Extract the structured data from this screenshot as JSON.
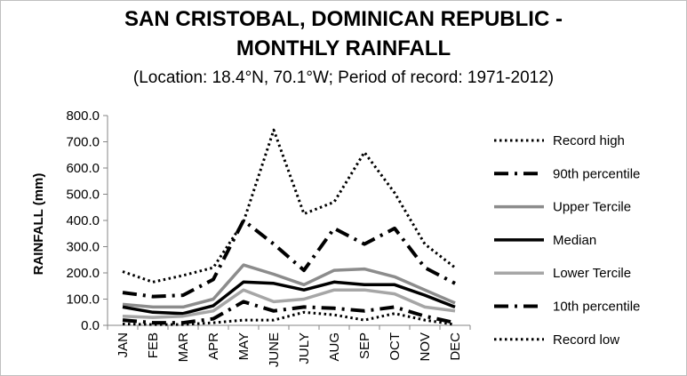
{
  "chart_data": {
    "type": "line",
    "title_line1": "SAN CRISTOBAL, DOMINICAN REPUBLIC -",
    "title_line2": "MONTHLY RAINFALL",
    "subtitle": "(Location: 18.4°N, 70.1°W; Period of record: 1971-2012)",
    "xlabel": "",
    "ylabel": "RAINFALL (mm)",
    "ylim": [
      0,
      800
    ],
    "yticks": [
      "0.0",
      "100.0",
      "200.0",
      "300.0",
      "400.0",
      "500.0",
      "600.0",
      "700.0",
      "800.0"
    ],
    "categories": [
      "JAN",
      "FEB",
      "MAR",
      "APR",
      "MAY",
      "JUNE",
      "JULY",
      "AUG",
      "SEP",
      "OCT",
      "NOV",
      "DEC"
    ],
    "grid": false,
    "legend_position": "right",
    "series": [
      {
        "name": "Record high",
        "style": "dotted",
        "color": "#000000",
        "values": [
          205,
          165,
          190,
          220,
          395,
          745,
          425,
          470,
          660,
          505,
          310,
          220
        ]
      },
      {
        "name": "90th percentile",
        "style": "dashdot",
        "color": "#000000",
        "values": [
          125,
          110,
          115,
          175,
          400,
          310,
          210,
          370,
          310,
          370,
          220,
          160
        ]
      },
      {
        "name": "Upper Tercile",
        "style": "solid-gray",
        "color": "#8c8c8c",
        "values": [
          80,
          70,
          70,
          100,
          230,
          195,
          155,
          210,
          215,
          185,
          135,
          85
        ]
      },
      {
        "name": "Median",
        "style": "solid",
        "color": "#000000",
        "values": [
          70,
          50,
          45,
          75,
          165,
          160,
          135,
          165,
          155,
          155,
          115,
          70
        ]
      },
      {
        "name": "Lower Tercile",
        "style": "solid-lightgray",
        "color": "#a6a6a6",
        "values": [
          35,
          30,
          35,
          55,
          135,
          90,
          100,
          135,
          135,
          120,
          70,
          55
        ]
      },
      {
        "name": "10th percentile",
        "style": "dashdot",
        "color": "#000000",
        "values": [
          20,
          10,
          10,
          25,
          90,
          55,
          70,
          65,
          55,
          70,
          35,
          10
        ]
      },
      {
        "name": "Record low",
        "style": "dotted",
        "color": "#000000",
        "values": [
          5,
          3,
          3,
          10,
          20,
          20,
          50,
          40,
          20,
          45,
          20,
          3
        ]
      }
    ]
  }
}
